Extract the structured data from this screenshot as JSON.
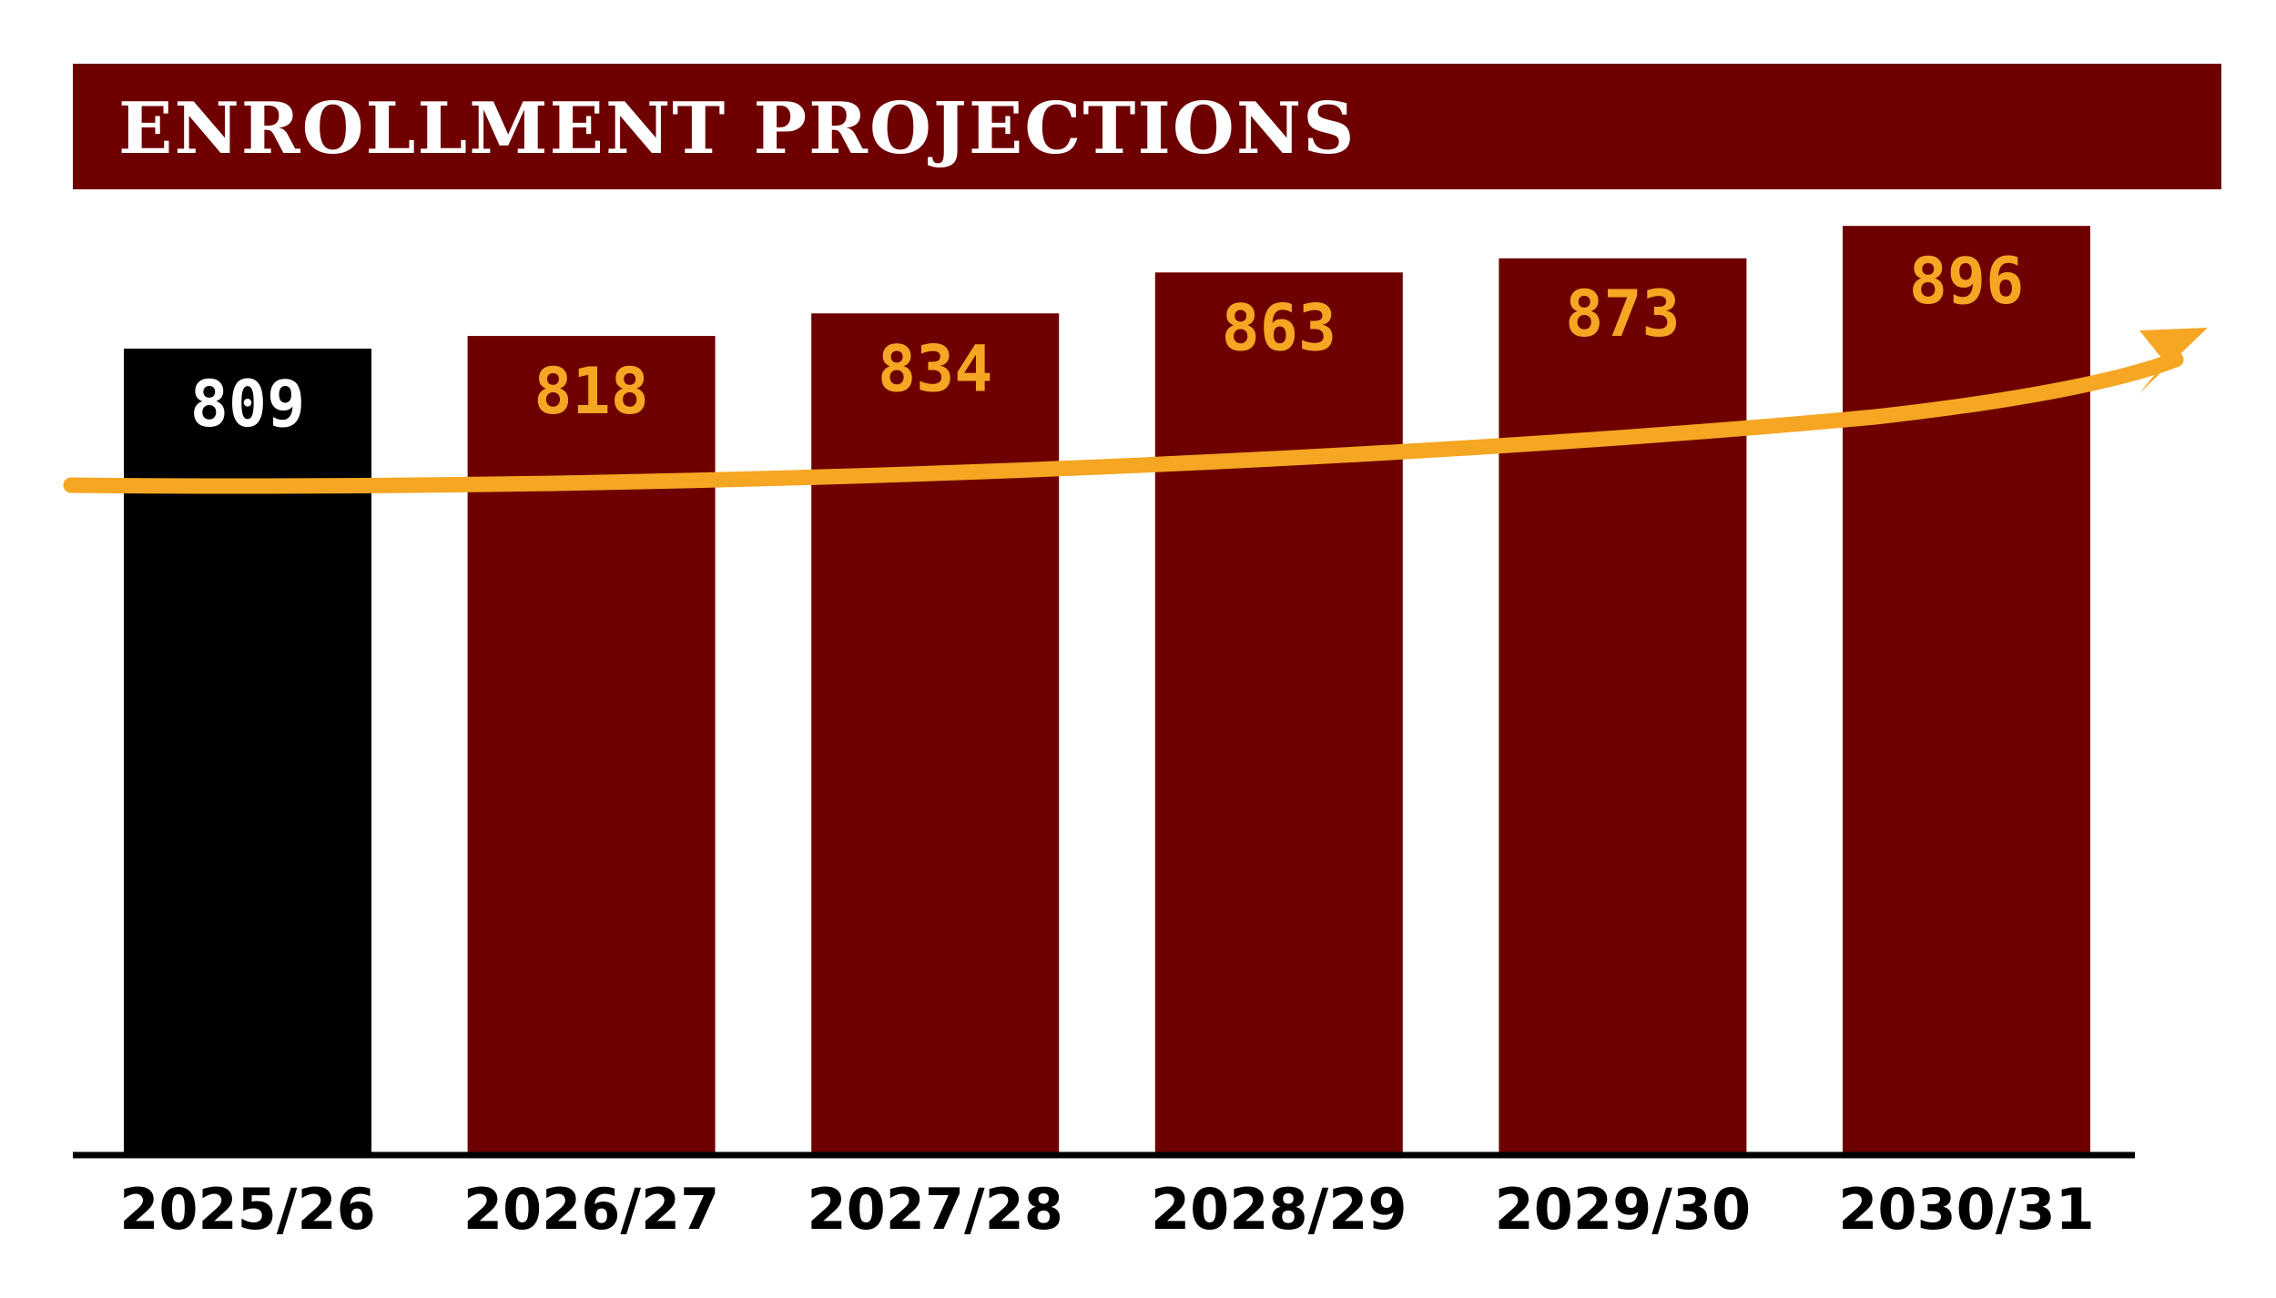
{
  "chart_data": {
    "type": "bar",
    "title": "ENROLLMENT PROJECTIONS",
    "categories": [
      "2025/26",
      "2026/27",
      "2027/28",
      "2028/29",
      "2029/30",
      "2030/31"
    ],
    "values": [
      809,
      818,
      834,
      863,
      873,
      896
    ],
    "xlabel": "",
    "ylabel": "",
    "grid": false,
    "trend_arrow": true,
    "colors": {
      "title_banner": "#6e0000",
      "title_text": "#ffffff",
      "current_bar": "#000000",
      "projected_bar": "#6e0000",
      "current_label": "#ffffff",
      "projected_label": "#f5a623",
      "trend_arrow": "#f5a623",
      "axis": "#000000"
    }
  }
}
